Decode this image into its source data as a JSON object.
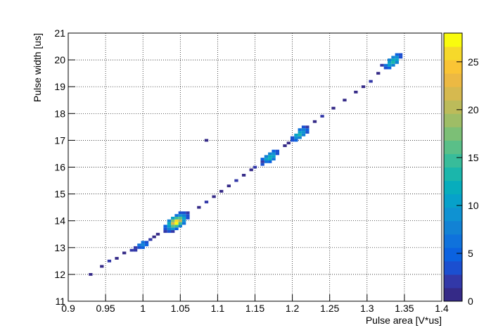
{
  "chart_data": {
    "type": "heatmap2d",
    "xlabel": "Pulse area [V*us]",
    "ylabel": "Pulse width [us]",
    "xlim": [
      0.9,
      1.4
    ],
    "xticks": [
      0.9,
      0.95,
      1,
      1.05,
      1.1,
      1.15,
      1.2,
      1.25,
      1.3,
      1.35,
      1.4
    ],
    "ylim": [
      11,
      21
    ],
    "yticks": [
      11,
      12,
      13,
      14,
      15,
      16,
      17,
      18,
      19,
      20,
      21
    ],
    "zlim": [
      0,
      28
    ],
    "zticks": [
      0,
      5,
      10,
      15,
      20,
      25
    ],
    "grid": true,
    "palette": [
      "#352a87",
      "#3238a8",
      "#1b4fd0",
      "#0b62e0",
      "#0f72dc",
      "#1282d4",
      "#0f92d2",
      "#07a1ca",
      "#07adbc",
      "#1bb6ab",
      "#38bc9a",
      "#5abf88",
      "#7cbf76",
      "#9ebd66",
      "#bcbb5a",
      "#d6b94f",
      "#ecb943",
      "#fac435",
      "#f6d92a",
      "#f9fb0e"
    ],
    "x": [
      1.03,
      1.035,
      1.04,
      1.03,
      1.035,
      1.04,
      1.045,
      1.03,
      1.035,
      1.04,
      1.045,
      1.05,
      1.035,
      1.04,
      1.045,
      1.05,
      1.055,
      1.035,
      1.04,
      1.045,
      1.05,
      1.055,
      1.04,
      1.045,
      1.05,
      1.055,
      1.06,
      1.045,
      1.05,
      1.055,
      1.06,
      1.05,
      1.055,
      1.06,
      0.99,
      0.995,
      1.0,
      0.995,
      1.0,
      1.005,
      1.0,
      1.005,
      1.01,
      0.99,
      1.16,
      1.165,
      1.17,
      1.16,
      1.165,
      1.17,
      1.175,
      1.165,
      1.17,
      1.175,
      1.17,
      1.175,
      1.18,
      1.175,
      1.18,
      1.16,
      1.2,
      1.205,
      1.205,
      1.21,
      1.2,
      1.205,
      1.21,
      1.215,
      1.21,
      1.215,
      1.22,
      1.21,
      1.215,
      1.22,
      1.215,
      1.22,
      1.325,
      1.33,
      1.325,
      1.33,
      1.335,
      1.33,
      1.335,
      1.34,
      1.33,
      1.335,
      1.34,
      1.335,
      1.34,
      1.345,
      1.34,
      1.345,
      1.32,
      0.93,
      0.945,
      0.955,
      0.965,
      0.975,
      0.985,
      1.015,
      1.02,
      1.075,
      1.085,
      1.095,
      1.105,
      1.115,
      1.125,
      1.135,
      1.145,
      1.15,
      1.19,
      1.195,
      1.23,
      1.24,
      1.255,
      1.27,
      1.285,
      1.295,
      1.305,
      1.315,
      1.085
    ],
    "y": [
      13.6,
      13.6,
      13.6,
      13.7,
      13.7,
      13.7,
      13.7,
      13.8,
      13.8,
      13.8,
      13.8,
      13.8,
      13.9,
      13.9,
      13.9,
      13.9,
      13.9,
      14,
      14,
      14,
      14,
      14,
      14.1,
      14.1,
      14.1,
      14.1,
      14.1,
      14.2,
      14.2,
      14.2,
      14.2,
      14.3,
      14.3,
      14.3,
      12.9,
      13,
      13,
      13.1,
      13.1,
      13.1,
      13.2,
      13.2,
      13.3,
      13,
      16.1,
      16.2,
      16.2,
      16.3,
      16.3,
      16.3,
      16.3,
      16.4,
      16.4,
      16.4,
      16.5,
      16.5,
      16.5,
      16.6,
      16.6,
      16.2,
      17,
      17,
      17.1,
      17.1,
      17.1,
      17.2,
      17.2,
      17.2,
      17.3,
      17.3,
      17.3,
      17.4,
      17.4,
      17.4,
      17.5,
      17.5,
      19.7,
      19.7,
      19.8,
      19.8,
      19.8,
      19.9,
      19.9,
      19.9,
      20,
      20,
      20,
      20.1,
      20.1,
      20.1,
      20.2,
      20.2,
      19.8,
      12,
      12.3,
      12.5,
      12.6,
      12.8,
      12.9,
      13.4,
      13.5,
      14.5,
      14.7,
      14.9,
      15.1,
      15.3,
      15.5,
      15.7,
      15.9,
      16,
      16.8,
      16.9,
      17.7,
      17.9,
      18.2,
      18.5,
      18.8,
      19,
      19.2,
      19.5,
      17
    ],
    "z": [
      2,
      3,
      2,
      4,
      7,
      9,
      5,
      5,
      10,
      16,
      14,
      7,
      12,
      22,
      27,
      15,
      6,
      8,
      18,
      26,
      20,
      9,
      10,
      14,
      16,
      10,
      4,
      6,
      9,
      8,
      4,
      3,
      4,
      2,
      2,
      4,
      5,
      6,
      8,
      5,
      6,
      4,
      2,
      2,
      3,
      6,
      5,
      5,
      10,
      12,
      6,
      8,
      12,
      10,
      7,
      9,
      4,
      5,
      3,
      2,
      3,
      5,
      9,
      8,
      4,
      11,
      13,
      7,
      11,
      9,
      4,
      6,
      8,
      5,
      4,
      2,
      3,
      5,
      6,
      10,
      8,
      11,
      13,
      7,
      7,
      12,
      10,
      8,
      9,
      4,
      5,
      3,
      2,
      1,
      1,
      2,
      1,
      1,
      2,
      1,
      1,
      1,
      2,
      1,
      1,
      1,
      2,
      1,
      1,
      2,
      1,
      1,
      1,
      2,
      1,
      1,
      1,
      1,
      2,
      1,
      1
    ]
  }
}
